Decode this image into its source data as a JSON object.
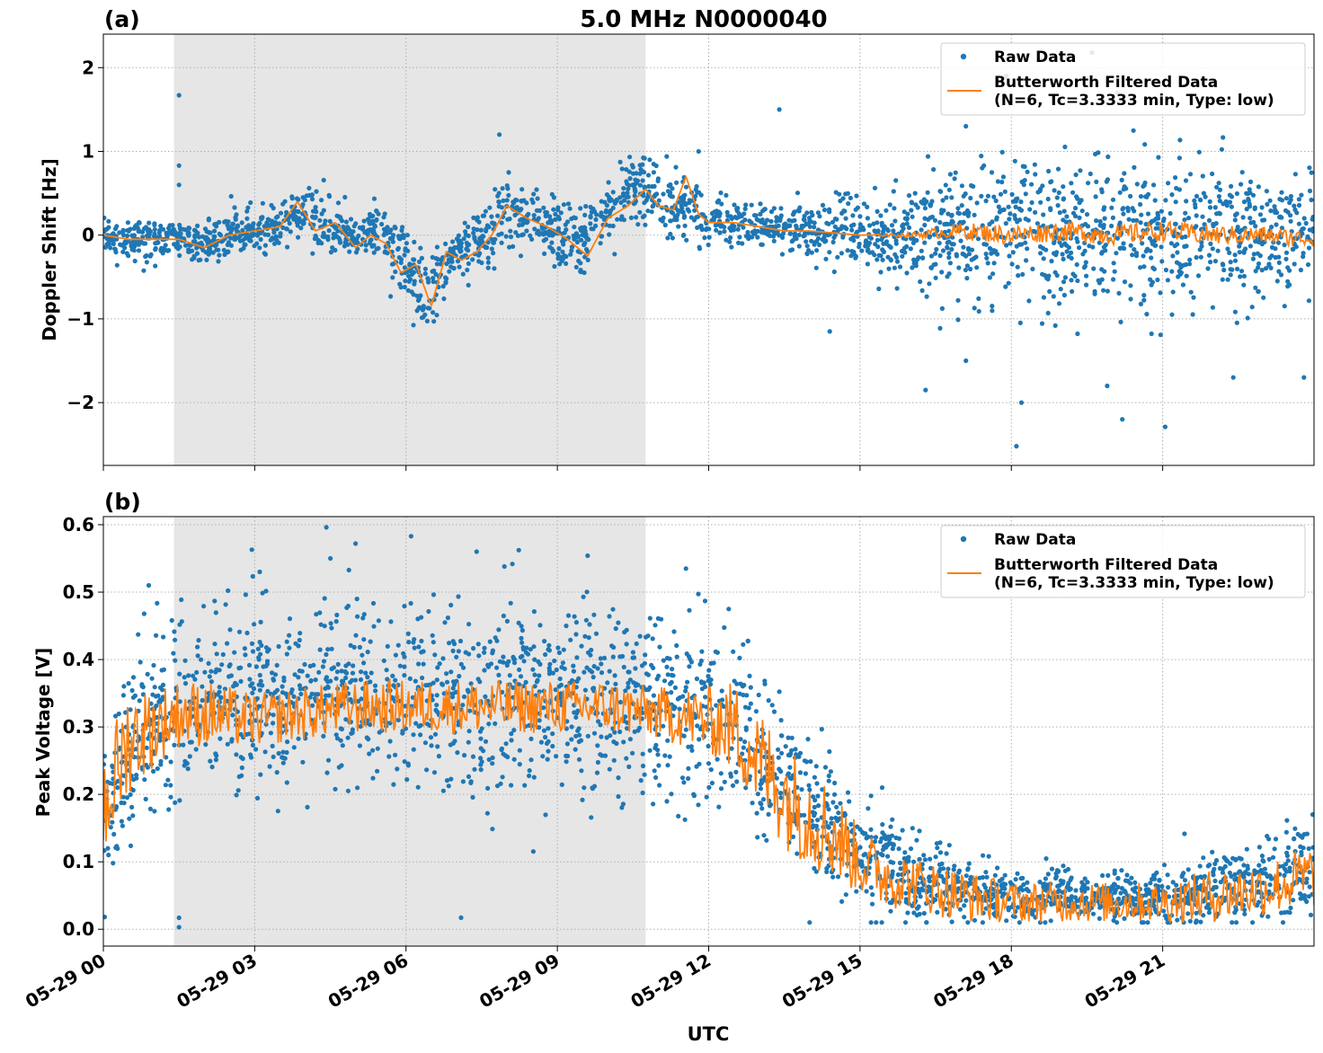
{
  "figure": {
    "title": "5.0 MHz N0000040",
    "xlabel": "UTC",
    "x_tick_labels": [
      "05-29 00",
      "05-29 03",
      "05-29 06",
      "05-29 09",
      "05-29 12",
      "05-29 15",
      "05-29 18",
      "05-29 21"
    ],
    "legend": {
      "raw_label": "Raw Data",
      "filtered_label_line1": "Butterworth Filtered Data",
      "filtered_label_line2": "(N=6, Tc=3.3333 min, Type: low)"
    },
    "colors": {
      "raw": "#1f77b4",
      "filtered": "#ff7f0e",
      "shade": "#e6e6e6",
      "grid": "#b0b0b0"
    }
  },
  "chart_data": [
    {
      "type": "scatter",
      "panel_label": "(a)",
      "ylabel": "Doppler Shift [Hz]",
      "x_unit": "hours UTC on 05-29",
      "xlim": [
        0,
        24
      ],
      "ylim": [
        -2.75,
        2.4
      ],
      "y_ticks": [
        2,
        1,
        0,
        -1,
        -2
      ],
      "y_tick_labels": [
        "2",
        "1",
        "0",
        "−1",
        "−2"
      ],
      "grid": true,
      "legend_position": "top-right",
      "shaded_interval": [
        1.4,
        10.75
      ],
      "series": [
        {
          "name": "Raw Data",
          "style": "points",
          "x": [
            0,
            0.5,
            1,
            1.5,
            2,
            2.5,
            3,
            3.5,
            4,
            4.5,
            5,
            5.5,
            6,
            6.5,
            7,
            7.5,
            8,
            8.5,
            9,
            9.5,
            10,
            10.5,
            10.75,
            11,
            11.5,
            12,
            12.5,
            13,
            14,
            15,
            16,
            17,
            18,
            19,
            20,
            21,
            22,
            23,
            24
          ],
          "y": [
            0.0,
            -0.05,
            -0.05,
            -0.05,
            -0.1,
            0.0,
            0.05,
            0.1,
            0.3,
            0.1,
            0.0,
            0.05,
            -0.4,
            -0.8,
            -0.2,
            -0.1,
            0.3,
            0.2,
            0.0,
            -0.1,
            0.3,
            0.55,
            0.6,
            0.4,
            0.35,
            0.2,
            0.15,
            0.1,
            0.05,
            0.05,
            0.0,
            0.05,
            0.05,
            0.0,
            0.0,
            0.0,
            0.0,
            0.0,
            0.0
          ],
          "spread": [
            0.1,
            0.15,
            0.15,
            0.15,
            0.15,
            0.2,
            0.2,
            0.2,
            0.25,
            0.2,
            0.2,
            0.2,
            0.3,
            0.3,
            0.25,
            0.25,
            0.3,
            0.25,
            0.25,
            0.25,
            0.25,
            0.3,
            0.3,
            0.3,
            0.25,
            0.2,
            0.15,
            0.15,
            0.2,
            0.25,
            0.4,
            0.5,
            0.6,
            0.6,
            0.6,
            0.6,
            0.55,
            0.5,
            0.5
          ],
          "outliers": [
            [
              1.5,
              1.67
            ],
            [
              1.5,
              0.83
            ],
            [
              1.5,
              0.6
            ],
            [
              7.85,
              1.2
            ],
            [
              13.4,
              1.5
            ],
            [
              17.1,
              1.3
            ],
            [
              17.9,
              1.9
            ],
            [
              19.6,
              2.18
            ],
            [
              20.1,
              1.7
            ],
            [
              18.1,
              -2.52
            ],
            [
              18.2,
              -2.0
            ],
            [
              20.2,
              -2.2
            ],
            [
              21.05,
              -2.29
            ],
            [
              22.4,
              -1.7
            ],
            [
              23.8,
              -1.7
            ],
            [
              16.3,
              -1.85
            ],
            [
              17.1,
              -1.5
            ],
            [
              19.9,
              -1.8
            ],
            [
              14.4,
              -1.15
            ],
            [
              11.8,
              1.0
            ]
          ]
        },
        {
          "name": "Butterworth Filtered Data (N=6, Tc=3.3333 min, Type: low)",
          "style": "line",
          "x": [
            0,
            0.5,
            1,
            1.5,
            2,
            2.5,
            3,
            3.5,
            3.85,
            4.2,
            4.6,
            5,
            5.3,
            5.6,
            5.9,
            6.2,
            6.5,
            6.8,
            7.1,
            7.4,
            7.7,
            8,
            8.4,
            8.8,
            9.2,
            9.6,
            10,
            10.4,
            10.75,
            11,
            11.3,
            11.55,
            11.8,
            12,
            12.5,
            13,
            13.5,
            14,
            15,
            16,
            17,
            18,
            19,
            20,
            21,
            22,
            23,
            24
          ],
          "y": [
            0.0,
            -0.05,
            -0.05,
            -0.05,
            -0.15,
            0.0,
            0.05,
            0.1,
            0.4,
            0.05,
            0.15,
            -0.15,
            0.0,
            -0.1,
            -0.45,
            -0.35,
            -0.85,
            -0.2,
            -0.3,
            -0.2,
            0.0,
            0.35,
            0.2,
            0.1,
            -0.05,
            -0.25,
            0.2,
            0.35,
            0.55,
            0.35,
            0.3,
            0.7,
            0.25,
            0.15,
            0.15,
            0.1,
            0.05,
            0.05,
            0.0,
            0.0,
            0.05,
            0.0,
            0.05,
            0.0,
            0.05,
            0.0,
            0.0,
            -0.05
          ],
          "jitter": [
            0,
            0,
            0,
            0,
            0,
            0,
            0,
            0,
            0,
            0,
            0,
            0,
            0,
            0,
            0,
            0,
            0,
            0,
            0,
            0,
            0,
            0,
            0,
            0,
            0,
            0,
            0,
            0,
            0,
            0,
            0,
            0,
            0,
            0,
            0,
            0,
            0,
            0,
            0,
            0.03,
            0.1,
            0.12,
            0.12,
            0.12,
            0.12,
            0.12,
            0.1,
            0.1
          ]
        }
      ]
    },
    {
      "type": "scatter",
      "panel_label": "(b)",
      "ylabel": "Peak Voltage [V]",
      "x_unit": "hours UTC on 05-29",
      "xlim": [
        0,
        24
      ],
      "ylim": [
        -0.025,
        0.612
      ],
      "y_ticks": [
        0.6,
        0.5,
        0.4,
        0.3,
        0.2,
        0.1,
        0.0
      ],
      "y_tick_labels": [
        "0.6",
        "0.5",
        "0.4",
        "0.3",
        "0.2",
        "0.1",
        "0.0"
      ],
      "grid": true,
      "legend_position": "top-right",
      "shaded_interval": [
        1.4,
        10.75
      ],
      "series": [
        {
          "name": "Raw Data",
          "style": "points",
          "x": [
            0,
            0.5,
            1,
            1.5,
            2,
            3,
            4,
            5,
            6,
            7,
            8,
            9,
            10,
            11,
            12,
            12.5,
            13,
            13.5,
            14,
            14.5,
            15,
            15.5,
            16,
            17,
            18,
            19,
            20,
            21,
            22,
            23,
            24
          ],
          "y": [
            0.15,
            0.25,
            0.3,
            0.32,
            0.34,
            0.34,
            0.35,
            0.36,
            0.35,
            0.34,
            0.35,
            0.34,
            0.33,
            0.33,
            0.32,
            0.3,
            0.26,
            0.22,
            0.18,
            0.15,
            0.12,
            0.1,
            0.08,
            0.06,
            0.05,
            0.05,
            0.05,
            0.05,
            0.06,
            0.07,
            0.1
          ],
          "spread": [
            0.08,
            0.09,
            0.09,
            0.09,
            0.09,
            0.09,
            0.09,
            0.09,
            0.09,
            0.09,
            0.09,
            0.09,
            0.09,
            0.09,
            0.09,
            0.09,
            0.08,
            0.07,
            0.07,
            0.06,
            0.05,
            0.05,
            0.04,
            0.03,
            0.025,
            0.025,
            0.025,
            0.025,
            0.03,
            0.04,
            0.05
          ],
          "outliers": [
            [
              1.5,
              0.017
            ],
            [
              1.5,
              0.003
            ],
            [
              5.0,
              0.572
            ],
            [
              6.1,
              0.583
            ],
            [
              7.4,
              0.56
            ],
            [
              9.6,
              0.554
            ],
            [
              0.9,
              0.51
            ],
            [
              11.55,
              0.535
            ],
            [
              14.0,
              0.01
            ],
            [
              3.1,
              0.53
            ],
            [
              4.5,
              0.55
            ]
          ]
        },
        {
          "name": "Butterworth Filtered Data (N=6, Tc=3.3333 min, Type: low)",
          "style": "line",
          "x": [
            0,
            0.5,
            1,
            1.5,
            2,
            3,
            4,
            5,
            6,
            7,
            8,
            9,
            10,
            11,
            12,
            12.5,
            13,
            13.5,
            14,
            14.5,
            15,
            15.5,
            16,
            17,
            18,
            19,
            20,
            21,
            22,
            23,
            24
          ],
          "y": [
            0.18,
            0.28,
            0.3,
            0.32,
            0.32,
            0.31,
            0.32,
            0.33,
            0.33,
            0.33,
            0.33,
            0.33,
            0.33,
            0.32,
            0.31,
            0.3,
            0.25,
            0.2,
            0.17,
            0.14,
            0.1,
            0.08,
            0.07,
            0.05,
            0.04,
            0.04,
            0.04,
            0.04,
            0.05,
            0.06,
            0.08
          ],
          "jitter": [
            0.09,
            0.08,
            0.06,
            0.05,
            0.05,
            0.04,
            0.04,
            0.04,
            0.04,
            0.04,
            0.04,
            0.04,
            0.04,
            0.04,
            0.05,
            0.07,
            0.08,
            0.08,
            0.08,
            0.07,
            0.05,
            0.05,
            0.04,
            0.04,
            0.03,
            0.03,
            0.03,
            0.03,
            0.04,
            0.04,
            0.05
          ]
        }
      ]
    }
  ]
}
